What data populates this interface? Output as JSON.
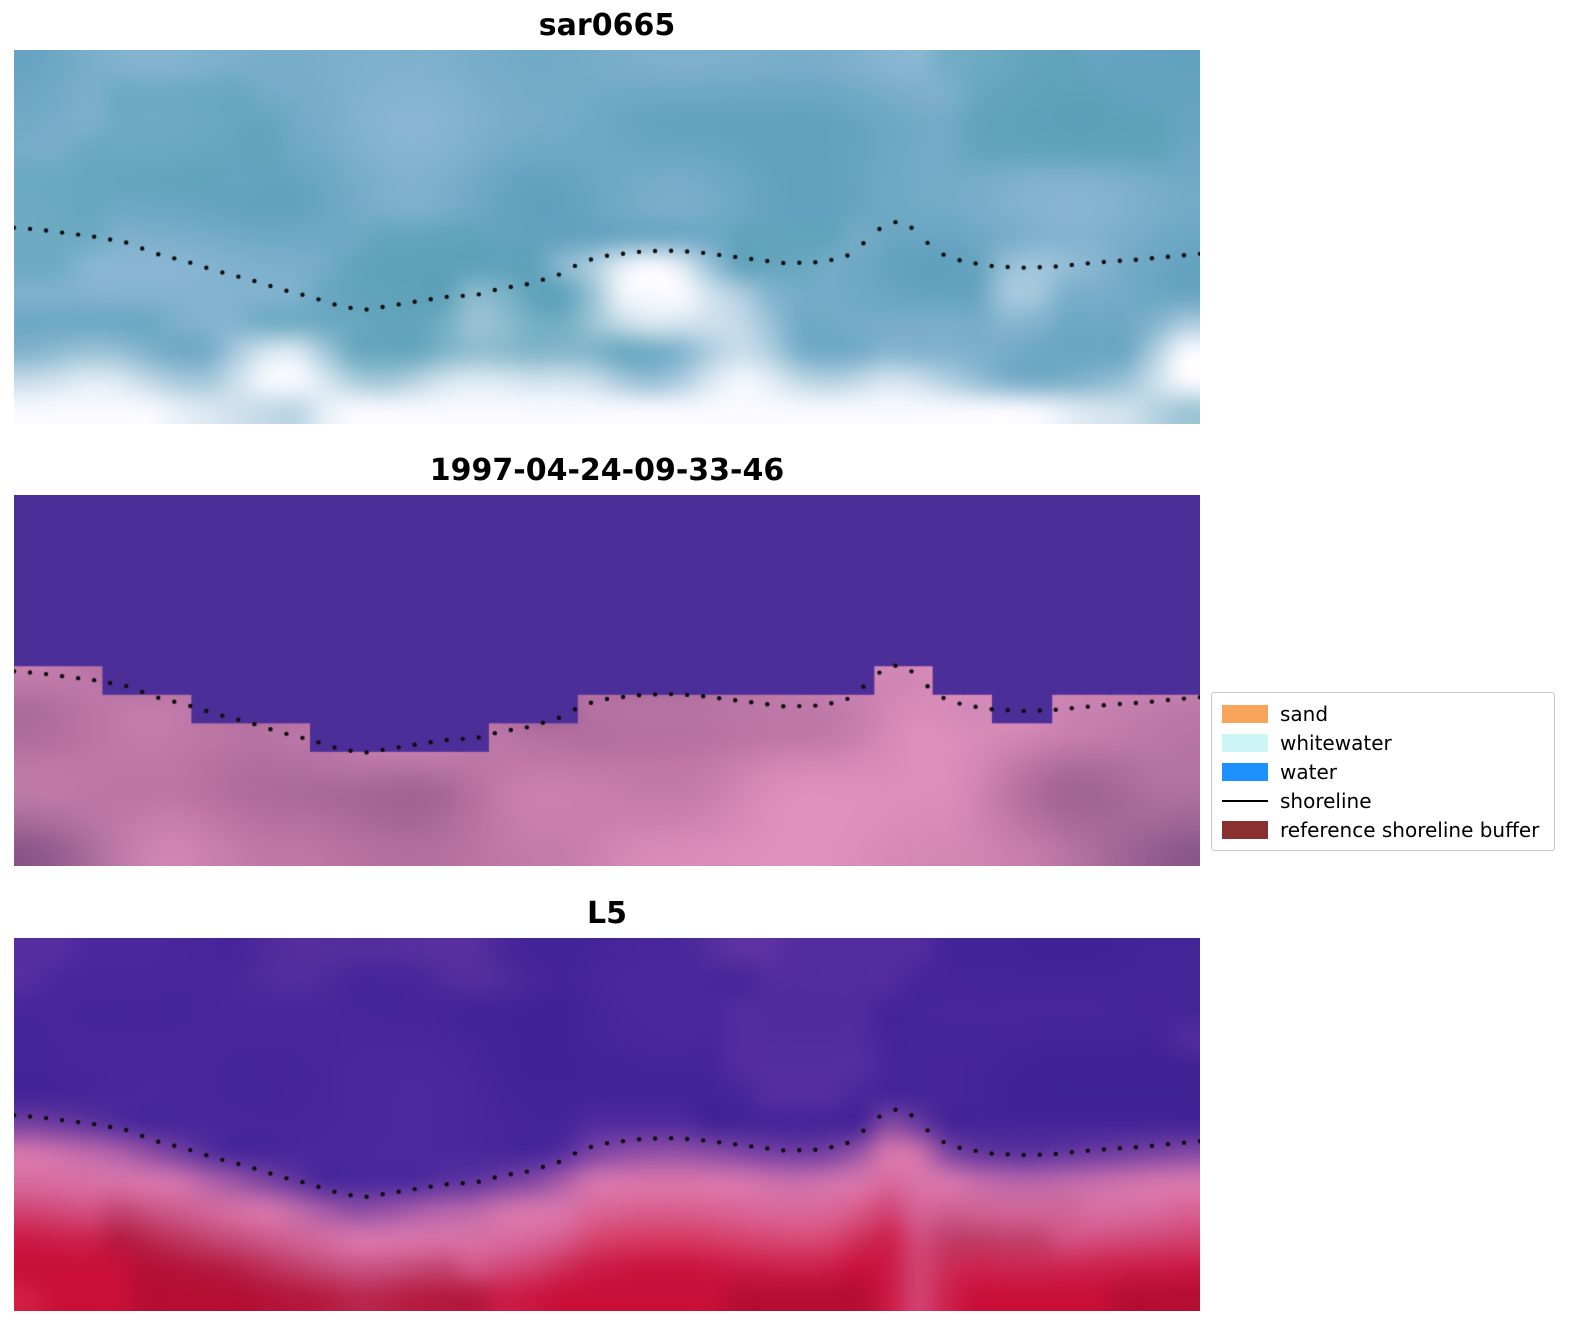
{
  "figure": {
    "background": "#ffffff",
    "shoreline_dot_color": "#0d0d0d",
    "panels": [
      {
        "id": "sar",
        "title": "sar0665",
        "style": "sar",
        "palette": {
          "blue_dark": "#5E9FBC",
          "blue_light": "#8FBAD6",
          "teal": "#55A0B2",
          "white": "#FAFAFF"
        }
      },
      {
        "id": "class",
        "title": "1997-04-24-09-33-46",
        "style": "class",
        "palette": {
          "water_purple": "#4C2E99",
          "pink_dark": "#9A5C8E",
          "pink_light": "#E494C1",
          "pink_band": "#C47FB0",
          "vignette": "#6B4479"
        }
      },
      {
        "id": "l5",
        "title": "L5",
        "style": "l5",
        "palette": {
          "purple_dark": "#3E2193",
          "purple_mid": "#4C2A9E",
          "purple_light": "#6233A6",
          "top_pink": "#9A50B2",
          "shore_pink": "#D978AE",
          "red": "#C90F38",
          "red_dark": "#9E0C2C",
          "red_bright": "#E03352"
        }
      }
    ],
    "legend": {
      "items": [
        {
          "label": "sand",
          "swatch": "patch",
          "color": "#F9A45B"
        },
        {
          "label": "whitewater",
          "swatch": "patch",
          "color": "#CDF5F6"
        },
        {
          "label": "water",
          "swatch": "patch",
          "color": "#1E90FF"
        },
        {
          "label": "shoreline",
          "swatch": "line",
          "color": "#000000"
        },
        {
          "label": "reference shoreline buffer",
          "swatch": "patch",
          "color": "#8B3030"
        }
      ]
    }
  },
  "chart_data": {
    "type": "heatmap",
    "title": "",
    "panels": [
      {
        "title": "sar0665",
        "content": "SAR satellite backscatter image: mottled blue/teal water above, bright white returns along lower half, dotted detected shoreline overlay"
      },
      {
        "title": "1997-04-24-09-33-46",
        "content": "Classified optical image: uniform purple water mass above, pink/magenta land below, blocky stepped pixel boundary along the shoreline"
      },
      {
        "title": "L5",
        "content": "Landsat 5 false-colour composite: purple water upper half with pink patches at top edge, pink shoreline band, saturated crimson land along bottom"
      }
    ],
    "shoreline": {
      "coordinates": "normalized panel fractions (x rightward, y downward)",
      "points": [
        [
          0,
          0.475
        ],
        [
          0.02,
          0.48
        ],
        [
          0.045,
          0.49
        ],
        [
          0.07,
          0.5
        ],
        [
          0.095,
          0.515
        ],
        [
          0.12,
          0.545
        ],
        [
          0.145,
          0.565
        ],
        [
          0.17,
          0.59
        ],
        [
          0.2,
          0.615
        ],
        [
          0.225,
          0.64
        ],
        [
          0.25,
          0.66
        ],
        [
          0.275,
          0.685
        ],
        [
          0.295,
          0.695
        ],
        [
          0.315,
          0.685
        ],
        [
          0.34,
          0.672
        ],
        [
          0.365,
          0.66
        ],
        [
          0.39,
          0.655
        ],
        [
          0.41,
          0.638
        ],
        [
          0.435,
          0.625
        ],
        [
          0.46,
          0.6
        ],
        [
          0.48,
          0.565
        ],
        [
          0.5,
          0.55
        ],
        [
          0.525,
          0.54
        ],
        [
          0.55,
          0.536
        ],
        [
          0.575,
          0.54
        ],
        [
          0.6,
          0.55
        ],
        [
          0.625,
          0.56
        ],
        [
          0.65,
          0.57
        ],
        [
          0.675,
          0.568
        ],
        [
          0.7,
          0.556
        ],
        [
          0.715,
          0.52
        ],
        [
          0.73,
          0.478
        ],
        [
          0.745,
          0.458
        ],
        [
          0.755,
          0.47
        ],
        [
          0.77,
          0.515
        ],
        [
          0.785,
          0.55
        ],
        [
          0.8,
          0.565
        ],
        [
          0.825,
          0.578
        ],
        [
          0.85,
          0.582
        ],
        [
          0.875,
          0.58
        ],
        [
          0.9,
          0.572
        ],
        [
          0.925,
          0.565
        ],
        [
          0.95,
          0.56
        ],
        [
          0.975,
          0.552
        ],
        [
          1,
          0.545
        ]
      ],
      "style": "dotted black markers, identical overlay on all three panels"
    },
    "legend": [
      "sand",
      "whitewater",
      "water",
      "shoreline",
      "reference shoreline buffer"
    ]
  }
}
